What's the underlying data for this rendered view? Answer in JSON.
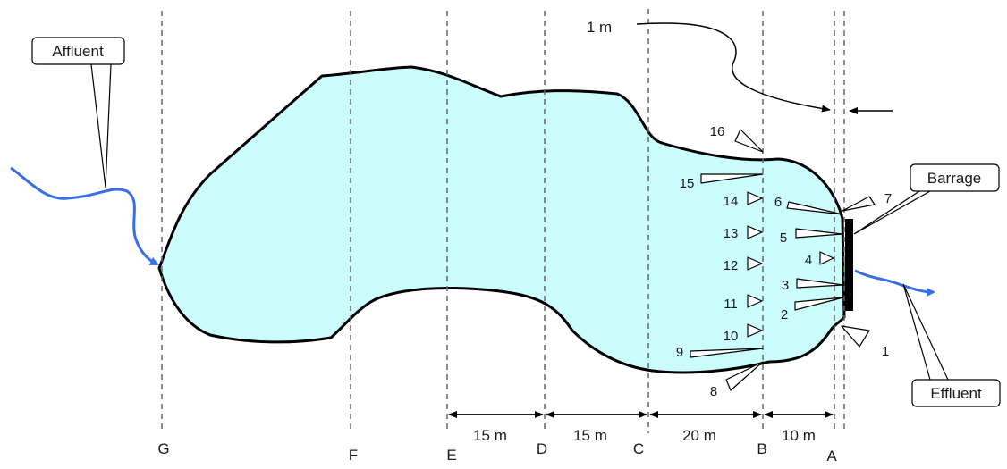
{
  "callouts": {
    "affluent": "Affluent",
    "barrage": "Barrage",
    "effluent": "Effluent"
  },
  "gap_label": "1 m",
  "sections": [
    "G",
    "F",
    "E",
    "D",
    "C",
    "B",
    "A"
  ],
  "dimensions": [
    "15 m",
    "15 m",
    "20 m",
    "10 m"
  ],
  "probes": [
    "1",
    "2",
    "3",
    "4",
    "5",
    "6",
    "7",
    "8",
    "9",
    "10",
    "11",
    "12",
    "13",
    "14",
    "15",
    "16"
  ],
  "colors": {
    "water": "#ccfdfd",
    "shore": "#000000",
    "stream": "#3a6ee8",
    "guide": "#666666"
  }
}
